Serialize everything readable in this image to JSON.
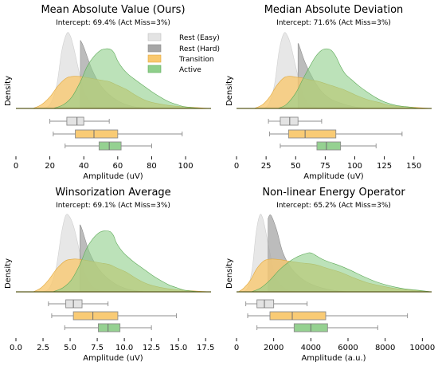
{
  "colors": {
    "rest_easy": "#e3e3e3",
    "rest_hard": "#a6a6a6",
    "transition": "#f9c86e",
    "active": "#8fcf8b",
    "baseline": "#5b5b1f",
    "axis": "#000000"
  },
  "legend": {
    "items": [
      "Rest (Easy)",
      "Rest (Hard)",
      "Transition",
      "Active"
    ]
  },
  "chart_data": [
    {
      "type": "area",
      "title": "Mean Absolute Value (Ours)",
      "subtitle": "Intercept: 69.4% (Act Miss=3%)",
      "ylabel": "Density",
      "xlabel": "Amplitude (uV)",
      "xlim": [
        0,
        115
      ],
      "xticks": [
        "0",
        "20",
        "40",
        "60",
        "80",
        "100"
      ],
      "xtick_values": [
        0,
        20,
        40,
        60,
        80,
        100
      ],
      "threshold": 38,
      "series": [
        {
          "name": "Rest (Easy)",
          "x": [
            15,
            20,
            24,
            27,
            30,
            32,
            34,
            37,
            40,
            44,
            48,
            52
          ],
          "y": [
            0,
            0.05,
            0.3,
            0.75,
            0.98,
            0.95,
            0.8,
            0.5,
            0.22,
            0.08,
            0.02,
            0
          ]
        },
        {
          "name": "Rest (Hard)",
          "x": [
            15,
            20,
            24,
            28,
            32,
            36,
            40,
            45,
            50,
            55,
            60,
            65,
            70,
            78
          ],
          "y": [
            0,
            0.03,
            0.2,
            0.58,
            0.95,
            0.98,
            0.8,
            0.5,
            0.3,
            0.18,
            0.1,
            0.05,
            0.02,
            0
          ]
        },
        {
          "name": "Transition",
          "x": [
            10,
            15,
            20,
            25,
            30,
            35,
            40,
            45,
            50,
            55,
            60,
            65,
            70,
            75,
            80,
            90,
            100,
            115
          ],
          "y": [
            0,
            0.05,
            0.15,
            0.3,
            0.4,
            0.42,
            0.41,
            0.39,
            0.37,
            0.35,
            0.3,
            0.25,
            0.18,
            0.12,
            0.08,
            0.04,
            0.02,
            0
          ]
        },
        {
          "name": "Active",
          "x": [
            22,
            28,
            33,
            38,
            42,
            46,
            50,
            53,
            56,
            58,
            60,
            63,
            66,
            70,
            75,
            80,
            85,
            90,
            95,
            100,
            110
          ],
          "y": [
            0,
            0.05,
            0.15,
            0.35,
            0.55,
            0.68,
            0.76,
            0.78,
            0.77,
            0.72,
            0.62,
            0.52,
            0.45,
            0.38,
            0.3,
            0.22,
            0.15,
            0.09,
            0.05,
            0.02,
            0
          ]
        }
      ],
      "boxes": [
        {
          "name": "Rest (Easy)",
          "whislo": 20,
          "q1": 30,
          "med": 36,
          "q3": 40,
          "whishi": 55
        },
        {
          "name": "Transition",
          "whislo": 22,
          "q1": 35,
          "med": 46,
          "q3": 60,
          "whishi": 98
        },
        {
          "name": "Active",
          "whislo": 29,
          "q1": 49,
          "med": 55,
          "q3": 62,
          "whishi": 80
        }
      ]
    },
    {
      "type": "area",
      "title": "Median Absolute Deviation",
      "subtitle": "Intercept: 71.6% (Act Miss=3%)",
      "ylabel": "Density",
      "xlabel": "Amplitude (uV)",
      "xlim": [
        0,
        165
      ],
      "xticks": [
        "0",
        "25",
        "50",
        "75",
        "100",
        "125",
        "150"
      ],
      "xtick_values": [
        0,
        25,
        50,
        75,
        100,
        125,
        150
      ],
      "threshold": 52,
      "series": [
        {
          "name": "Rest (Easy)",
          "x": [
            22,
            27,
            32,
            36,
            40,
            43,
            46,
            50,
            54,
            58,
            63,
            70
          ],
          "y": [
            0,
            0.05,
            0.3,
            0.75,
            0.98,
            0.95,
            0.82,
            0.55,
            0.3,
            0.12,
            0.04,
            0
          ]
        },
        {
          "name": "Rest (Hard)",
          "x": [
            22,
            28,
            33,
            38,
            43,
            48,
            53,
            58,
            65,
            72,
            80,
            90,
            100,
            110
          ],
          "y": [
            0,
            0.03,
            0.2,
            0.55,
            0.9,
            0.98,
            0.82,
            0.6,
            0.38,
            0.22,
            0.12,
            0.06,
            0.02,
            0
          ]
        },
        {
          "name": "Transition",
          "x": [
            15,
            22,
            28,
            34,
            40,
            45,
            50,
            55,
            60,
            70,
            80,
            90,
            100,
            110,
            120,
            130,
            145,
            165
          ],
          "y": [
            0,
            0.05,
            0.15,
            0.3,
            0.4,
            0.42,
            0.41,
            0.4,
            0.38,
            0.35,
            0.3,
            0.25,
            0.18,
            0.12,
            0.08,
            0.04,
            0.02,
            0
          ]
        },
        {
          "name": "Active",
          "x": [
            35,
            42,
            50,
            56,
            62,
            67,
            72,
            76,
            80,
            84,
            88,
            92,
            97,
            103,
            110,
            118,
            126,
            135,
            145,
            155
          ],
          "y": [
            0,
            0.05,
            0.2,
            0.38,
            0.55,
            0.68,
            0.76,
            0.78,
            0.76,
            0.68,
            0.55,
            0.45,
            0.38,
            0.3,
            0.22,
            0.14,
            0.08,
            0.04,
            0.02,
            0
          ]
        }
      ],
      "boxes": [
        {
          "name": "Rest (Easy)",
          "whislo": 27,
          "q1": 37,
          "med": 45,
          "q3": 52,
          "whishi": 72
        },
        {
          "name": "Transition",
          "whislo": 28,
          "q1": 44,
          "med": 58,
          "q3": 84,
          "whishi": 140
        },
        {
          "name": "Active",
          "whislo": 37,
          "q1": 68,
          "med": 76,
          "q3": 88,
          "whishi": 118
        }
      ]
    },
    {
      "type": "area",
      "title": "Winsorization Average",
      "subtitle": "Intercept: 69.1% (Act Miss=3%)",
      "ylabel": "Density",
      "xlabel": "Amplitude (uV)",
      "xlim": [
        0,
        18
      ],
      "xticks": [
        "0.0",
        "2.5",
        "5.0",
        "7.5",
        "10.0",
        "12.5",
        "15.0",
        "17.5"
      ],
      "xtick_values": [
        0,
        2.5,
        5,
        7.5,
        10,
        12.5,
        15,
        17.5
      ],
      "threshold": 5.9,
      "series": [
        {
          "name": "Rest (Easy)",
          "x": [
            2.4,
            3.1,
            3.7,
            4.2,
            4.6,
            5.0,
            5.4,
            5.9,
            6.4,
            7.0,
            7.6,
            8.2
          ],
          "y": [
            0,
            0.05,
            0.3,
            0.75,
            0.98,
            0.95,
            0.8,
            0.5,
            0.22,
            0.08,
            0.02,
            0
          ]
        },
        {
          "name": "Rest (Hard)",
          "x": [
            2.4,
            3.1,
            3.7,
            4.3,
            4.9,
            5.5,
            6.1,
            6.8,
            7.6,
            8.4,
            9.2,
            10.0,
            10.8,
            12.0
          ],
          "y": [
            0,
            0.03,
            0.2,
            0.58,
            0.95,
            0.98,
            0.8,
            0.5,
            0.3,
            0.18,
            0.1,
            0.05,
            0.02,
            0
          ]
        },
        {
          "name": "Transition",
          "x": [
            1.6,
            2.3,
            3.0,
            3.8,
            4.6,
            5.4,
            6.2,
            7.0,
            7.8,
            8.6,
            9.4,
            10.2,
            11.0,
            11.8,
            12.6,
            14.0,
            15.5,
            17.8
          ],
          "y": [
            0,
            0.05,
            0.15,
            0.3,
            0.4,
            0.42,
            0.41,
            0.39,
            0.37,
            0.35,
            0.3,
            0.25,
            0.18,
            0.12,
            0.08,
            0.04,
            0.02,
            0
          ]
        },
        {
          "name": "Active",
          "x": [
            3.4,
            4.3,
            5.1,
            5.9,
            6.5,
            7.1,
            7.7,
            8.2,
            8.7,
            9.0,
            9.3,
            9.8,
            10.3,
            10.9,
            11.7,
            12.5,
            13.3,
            14.1,
            14.9,
            15.6,
            17.0
          ],
          "y": [
            0,
            0.05,
            0.15,
            0.35,
            0.55,
            0.68,
            0.76,
            0.78,
            0.77,
            0.72,
            0.62,
            0.52,
            0.45,
            0.38,
            0.3,
            0.22,
            0.15,
            0.09,
            0.05,
            0.02,
            0
          ]
        }
      ],
      "boxes": [
        {
          "name": "Rest (Easy)",
          "whislo": 3.0,
          "q1": 4.6,
          "med": 5.3,
          "q3": 6.1,
          "whishi": 8.5
        },
        {
          "name": "Transition",
          "whislo": 3.3,
          "q1": 5.3,
          "med": 7.1,
          "q3": 9.4,
          "whishi": 14.8
        },
        {
          "name": "Active",
          "whislo": 4.5,
          "q1": 7.6,
          "med": 8.5,
          "q3": 9.6,
          "whishi": 12.5
        }
      ]
    },
    {
      "type": "area",
      "title": "Non-linear Energy Operator",
      "subtitle": "Intercept: 65.2% (Act Miss=3%)",
      "ylabel": "Density",
      "xlabel": "Amplitude (a.u.)",
      "xlim": [
        0,
        10500
      ],
      "xticks": [
        "0",
        "2000",
        "4000",
        "6000",
        "8000",
        "10000"
      ],
      "xtick_values": [
        0,
        2000,
        4000,
        6000,
        8000,
        10000
      ],
      "threshold": 1700,
      "series": [
        {
          "name": "Rest (Easy)",
          "x": [
            300,
            600,
            850,
            1050,
            1250,
            1400,
            1550,
            1800,
            2050,
            2400,
            2800,
            3300
          ],
          "y": [
            0,
            0.05,
            0.3,
            0.75,
            0.98,
            0.95,
            0.8,
            0.5,
            0.22,
            0.08,
            0.02,
            0
          ]
        },
        {
          "name": "Rest (Hard)",
          "x": [
            300,
            650,
            950,
            1250,
            1550,
            1850,
            2150,
            2500,
            2950,
            3450,
            4000,
            4600,
            5200,
            6000
          ],
          "y": [
            0,
            0.03,
            0.2,
            0.55,
            0.9,
            0.98,
            0.8,
            0.5,
            0.3,
            0.18,
            0.1,
            0.05,
            0.02,
            0
          ]
        },
        {
          "name": "Transition",
          "x": [
            100,
            400,
            750,
            1100,
            1500,
            1900,
            2400,
            2900,
            3500,
            4200,
            4900,
            5600,
            6300,
            7000,
            7700,
            8600,
            9500,
            10500
          ],
          "y": [
            0,
            0.05,
            0.15,
            0.3,
            0.4,
            0.42,
            0.41,
            0.39,
            0.37,
            0.35,
            0.3,
            0.25,
            0.18,
            0.12,
            0.08,
            0.04,
            0.02,
            0
          ]
        },
        {
          "name": "Active",
          "x": [
            800,
            1300,
            1800,
            2300,
            2800,
            3200,
            3600,
            3900,
            4100,
            4300,
            4600,
            5000,
            5500,
            6100,
            6800,
            7500,
            8200,
            9000,
            9800,
            10500
          ],
          "y": [
            0,
            0.05,
            0.15,
            0.28,
            0.38,
            0.44,
            0.48,
            0.5,
            0.49,
            0.46,
            0.42,
            0.38,
            0.34,
            0.28,
            0.2,
            0.13,
            0.08,
            0.04,
            0.02,
            0
          ]
        }
      ],
      "boxes": [
        {
          "name": "Rest (Easy)",
          "whislo": 500,
          "q1": 1100,
          "med": 1500,
          "q3": 2000,
          "whishi": 3800
        },
        {
          "name": "Transition",
          "whislo": 600,
          "q1": 1800,
          "med": 3000,
          "q3": 4800,
          "whishi": 9200
        },
        {
          "name": "Active",
          "whislo": 1100,
          "q1": 3100,
          "med": 4000,
          "q3": 4900,
          "whishi": 7600
        }
      ]
    }
  ]
}
